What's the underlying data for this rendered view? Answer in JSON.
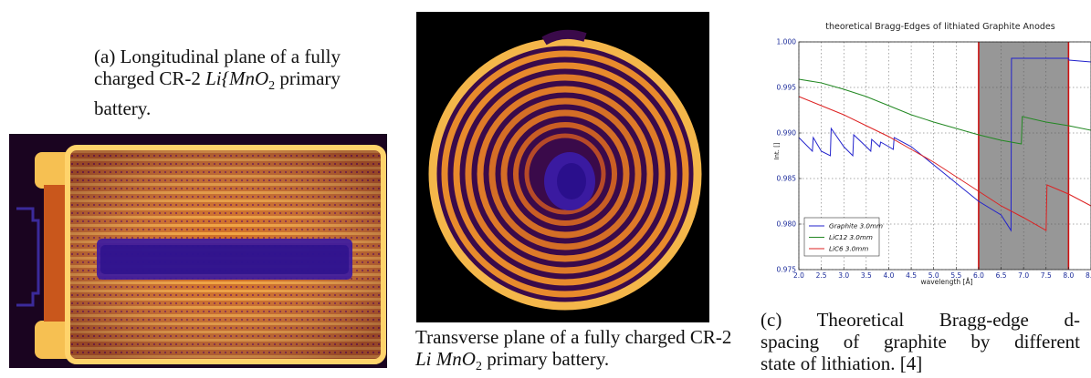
{
  "figure_a": {
    "caption_prefix": "(a) Longitudinal plane of a fully charged CR-2",
    "caption_formula": "Li{MnO",
    "caption_sub": "2",
    "caption_suffix": "primary battery."
  },
  "figure_b": {
    "caption_prefix": "Transverse plane of a fully charged CR-2",
    "caption_formula": "Li MnO",
    "caption_sub": "2",
    "caption_suffix": "primary battery."
  },
  "figure_c": {
    "caption_line1": "(c) Theoretical Bragg-edge d-",
    "caption_line2": "spacing of graphite by different",
    "caption_line3": "state of lithiation. [4]"
  },
  "chart_data": {
    "type": "line",
    "title": "theoretical Bragg-Edges of lithiated Graphite Anodes",
    "xlabel": "wavelength [Å]",
    "ylabel": "Int. []",
    "xlim": [
      2.0,
      8.5
    ],
    "ylim": [
      0.975,
      1.0
    ],
    "xticks": [
      "2.0",
      "2.5",
      "3.0",
      "3.5",
      "4.0",
      "4.5",
      "5.0",
      "5.5",
      "6.0",
      "6.5",
      "7.0",
      "7.5",
      "8.0",
      "8.5"
    ],
    "yticks": [
      "0.975",
      "0.980",
      "0.985",
      "0.990",
      "0.995",
      "1.000"
    ],
    "grid": true,
    "legend_position": "lower-left",
    "shaded_region": [
      6.0,
      8.0
    ],
    "shaded_color": "#8c8c8c",
    "series": [
      {
        "name": "Graphite 3.0mm",
        "color": "#2222cc",
        "x": [
          2.0,
          2.3,
          2.32,
          2.5,
          2.7,
          2.72,
          3.0,
          3.2,
          3.22,
          3.5,
          3.6,
          3.62,
          3.8,
          3.82,
          4.0,
          4.1,
          4.12,
          4.5,
          5.0,
          5.5,
          6.0,
          6.5,
          6.72,
          6.73,
          8.0,
          8.01,
          8.5
        ],
        "y": [
          0.9895,
          0.988,
          0.9895,
          0.988,
          0.9875,
          0.9905,
          0.9885,
          0.9875,
          0.9898,
          0.9885,
          0.988,
          0.9893,
          0.9885,
          0.989,
          0.9885,
          0.9882,
          0.9895,
          0.9885,
          0.9865,
          0.9845,
          0.9825,
          0.981,
          0.9793,
          0.9982,
          0.9982,
          0.998,
          0.9978
        ]
      },
      {
        "name": "LiC12 3.0mm",
        "color": "#228822",
        "x": [
          2.0,
          2.5,
          3.0,
          3.5,
          4.0,
          4.5,
          5.0,
          5.5,
          6.0,
          6.5,
          6.95,
          6.97,
          7.5,
          8.0,
          8.5
        ],
        "y": [
          0.9959,
          0.9955,
          0.9948,
          0.994,
          0.993,
          0.992,
          0.9912,
          0.9905,
          0.9898,
          0.9892,
          0.9888,
          0.9918,
          0.9912,
          0.9908,
          0.9903
        ]
      },
      {
        "name": "LiC6 3.0mm",
        "color": "#dd2222",
        "x": [
          2.0,
          2.5,
          3.0,
          3.5,
          4.0,
          4.5,
          5.0,
          5.5,
          6.0,
          6.5,
          7.0,
          7.5,
          7.52,
          8.0,
          8.5
        ],
        "y": [
          0.994,
          0.993,
          0.992,
          0.9908,
          0.9896,
          0.9882,
          0.9868,
          0.9852,
          0.9836,
          0.982,
          0.9807,
          0.9793,
          0.9843,
          0.9833,
          0.982
        ]
      }
    ]
  }
}
